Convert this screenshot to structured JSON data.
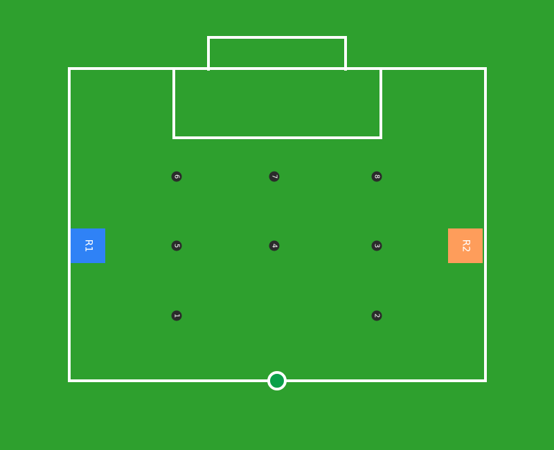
{
  "colors": {
    "field": "#2ea02e",
    "lines": "#ffffff",
    "marker": "#2b2b2b",
    "ball": "#0ba04a"
  },
  "markers": [
    "1",
    "2",
    "3",
    "4",
    "5",
    "6",
    "7",
    "8"
  ],
  "robots": {
    "r1": {
      "label": "R1",
      "color": "#2f82f6"
    },
    "r2": {
      "label": "R2",
      "color": "#fe9d5b"
    }
  }
}
